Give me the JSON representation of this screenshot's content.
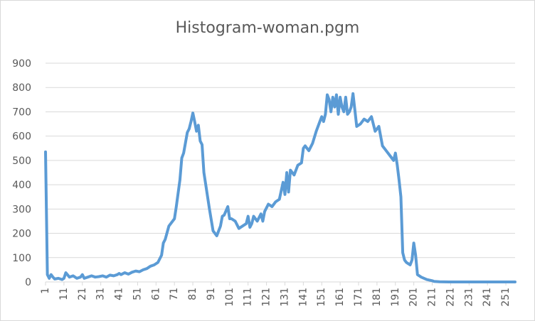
{
  "chart_data": {
    "type": "line",
    "title": "Histogram-woman.pgm",
    "xlabel": "",
    "ylabel": "",
    "ylim": [
      0,
      900
    ],
    "yticks": [
      0,
      100,
      200,
      300,
      400,
      500,
      600,
      700,
      800,
      900
    ],
    "xlim": [
      1,
      256
    ],
    "xticks": [
      1,
      11,
      21,
      31,
      41,
      51,
      61,
      71,
      81,
      91,
      101,
      111,
      121,
      131,
      141,
      151,
      161,
      171,
      181,
      191,
      201,
      211,
      221,
      231,
      241,
      251
    ],
    "grid": true,
    "legend": "none",
    "series_color": "#5B9BD5",
    "x": [
      1,
      2,
      3,
      4,
      5,
      6,
      8,
      10,
      11,
      12,
      14,
      16,
      18,
      20,
      21,
      22,
      24,
      26,
      28,
      30,
      32,
      34,
      36,
      38,
      40,
      41,
      42,
      44,
      46,
      48,
      50,
      52,
      54,
      56,
      58,
      60,
      62,
      64,
      65,
      66,
      68,
      70,
      71,
      72,
      74,
      75,
      76,
      78,
      79,
      80,
      81,
      82,
      83,
      84,
      85,
      86,
      87,
      88,
      90,
      92,
      94,
      96,
      97,
      98,
      100,
      101,
      102,
      104,
      106,
      108,
      110,
      111,
      112,
      113,
      114,
      116,
      118,
      119,
      120,
      122,
      124,
      126,
      128,
      130,
      131,
      132,
      133,
      134,
      136,
      138,
      140,
      141,
      142,
      144,
      146,
      148,
      150,
      151,
      152,
      153,
      154,
      155,
      156,
      157,
      158,
      159,
      160,
      161,
      162,
      163,
      164,
      165,
      166,
      167,
      168,
      170,
      172,
      174,
      176,
      178,
      180,
      182,
      184,
      186,
      188,
      190,
      191,
      192,
      193,
      194,
      195,
      196,
      197,
      198,
      199,
      200,
      201,
      202,
      203,
      205,
      208,
      211,
      212,
      215,
      220,
      230,
      240,
      250,
      256
    ],
    "y": [
      535,
      30,
      15,
      30,
      20,
      12,
      15,
      10,
      15,
      38,
      20,
      25,
      15,
      20,
      30,
      15,
      20,
      25,
      20,
      22,
      25,
      20,
      28,
      25,
      30,
      35,
      30,
      38,
      32,
      40,
      45,
      42,
      50,
      55,
      65,
      70,
      80,
      110,
      160,
      175,
      230,
      250,
      260,
      310,
      420,
      510,
      530,
      615,
      630,
      660,
      695,
      660,
      620,
      645,
      580,
      565,
      450,
      400,
      300,
      210,
      190,
      230,
      270,
      275,
      310,
      260,
      260,
      250,
      220,
      230,
      240,
      270,
      225,
      240,
      270,
      250,
      280,
      250,
      290,
      320,
      310,
      330,
      340,
      410,
      360,
      450,
      370,
      460,
      440,
      480,
      490,
      550,
      560,
      540,
      570,
      620,
      660,
      680,
      660,
      690,
      770,
      750,
      700,
      760,
      720,
      770,
      690,
      760,
      720,
      700,
      760,
      690,
      700,
      720,
      775,
      640,
      650,
      670,
      660,
      680,
      620,
      640,
      560,
      540,
      520,
      500,
      530,
      480,
      420,
      350,
      120,
      90,
      80,
      75,
      70,
      90,
      160,
      110,
      30,
      20,
      10,
      5,
      2,
      1,
      0,
      0,
      0,
      0,
      0
    ]
  }
}
